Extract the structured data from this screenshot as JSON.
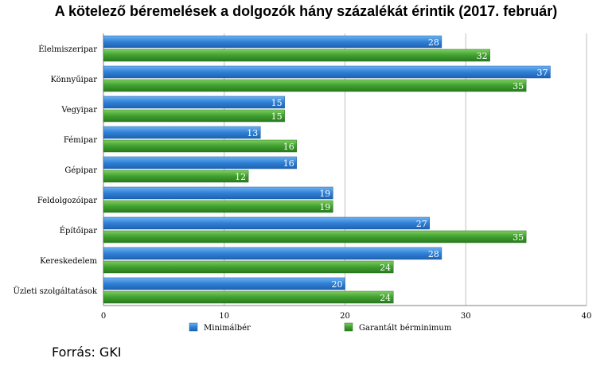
{
  "chart_data": {
    "type": "bar",
    "orientation": "horizontal",
    "title": "A kötelező béremelések a dolgozók hány százalékát érintik (2017. február)",
    "categories": [
      "Élelmiszeripar",
      "Könnyűipar",
      "Vegyipar",
      "Fémipar",
      "Gépipar",
      "Feldolgozóipar",
      "Építőipar",
      "Kereskedelem",
      "Üzleti szolgáltatások"
    ],
    "series": [
      {
        "name": "Minimálbér",
        "color": "#2f80d6",
        "values": [
          28,
          37,
          15,
          13,
          16,
          19,
          27,
          28,
          20
        ]
      },
      {
        "name": "Garantált bérminimum",
        "color": "#3fa02f",
        "values": [
          32,
          35,
          15,
          16,
          12,
          19,
          35,
          24,
          24
        ]
      }
    ],
    "xlim": [
      0,
      40
    ],
    "xticks": [
      0,
      10,
      20,
      30,
      40
    ],
    "grid": true,
    "legend_position": "bottom"
  },
  "source_note": "Forrás: GKI"
}
